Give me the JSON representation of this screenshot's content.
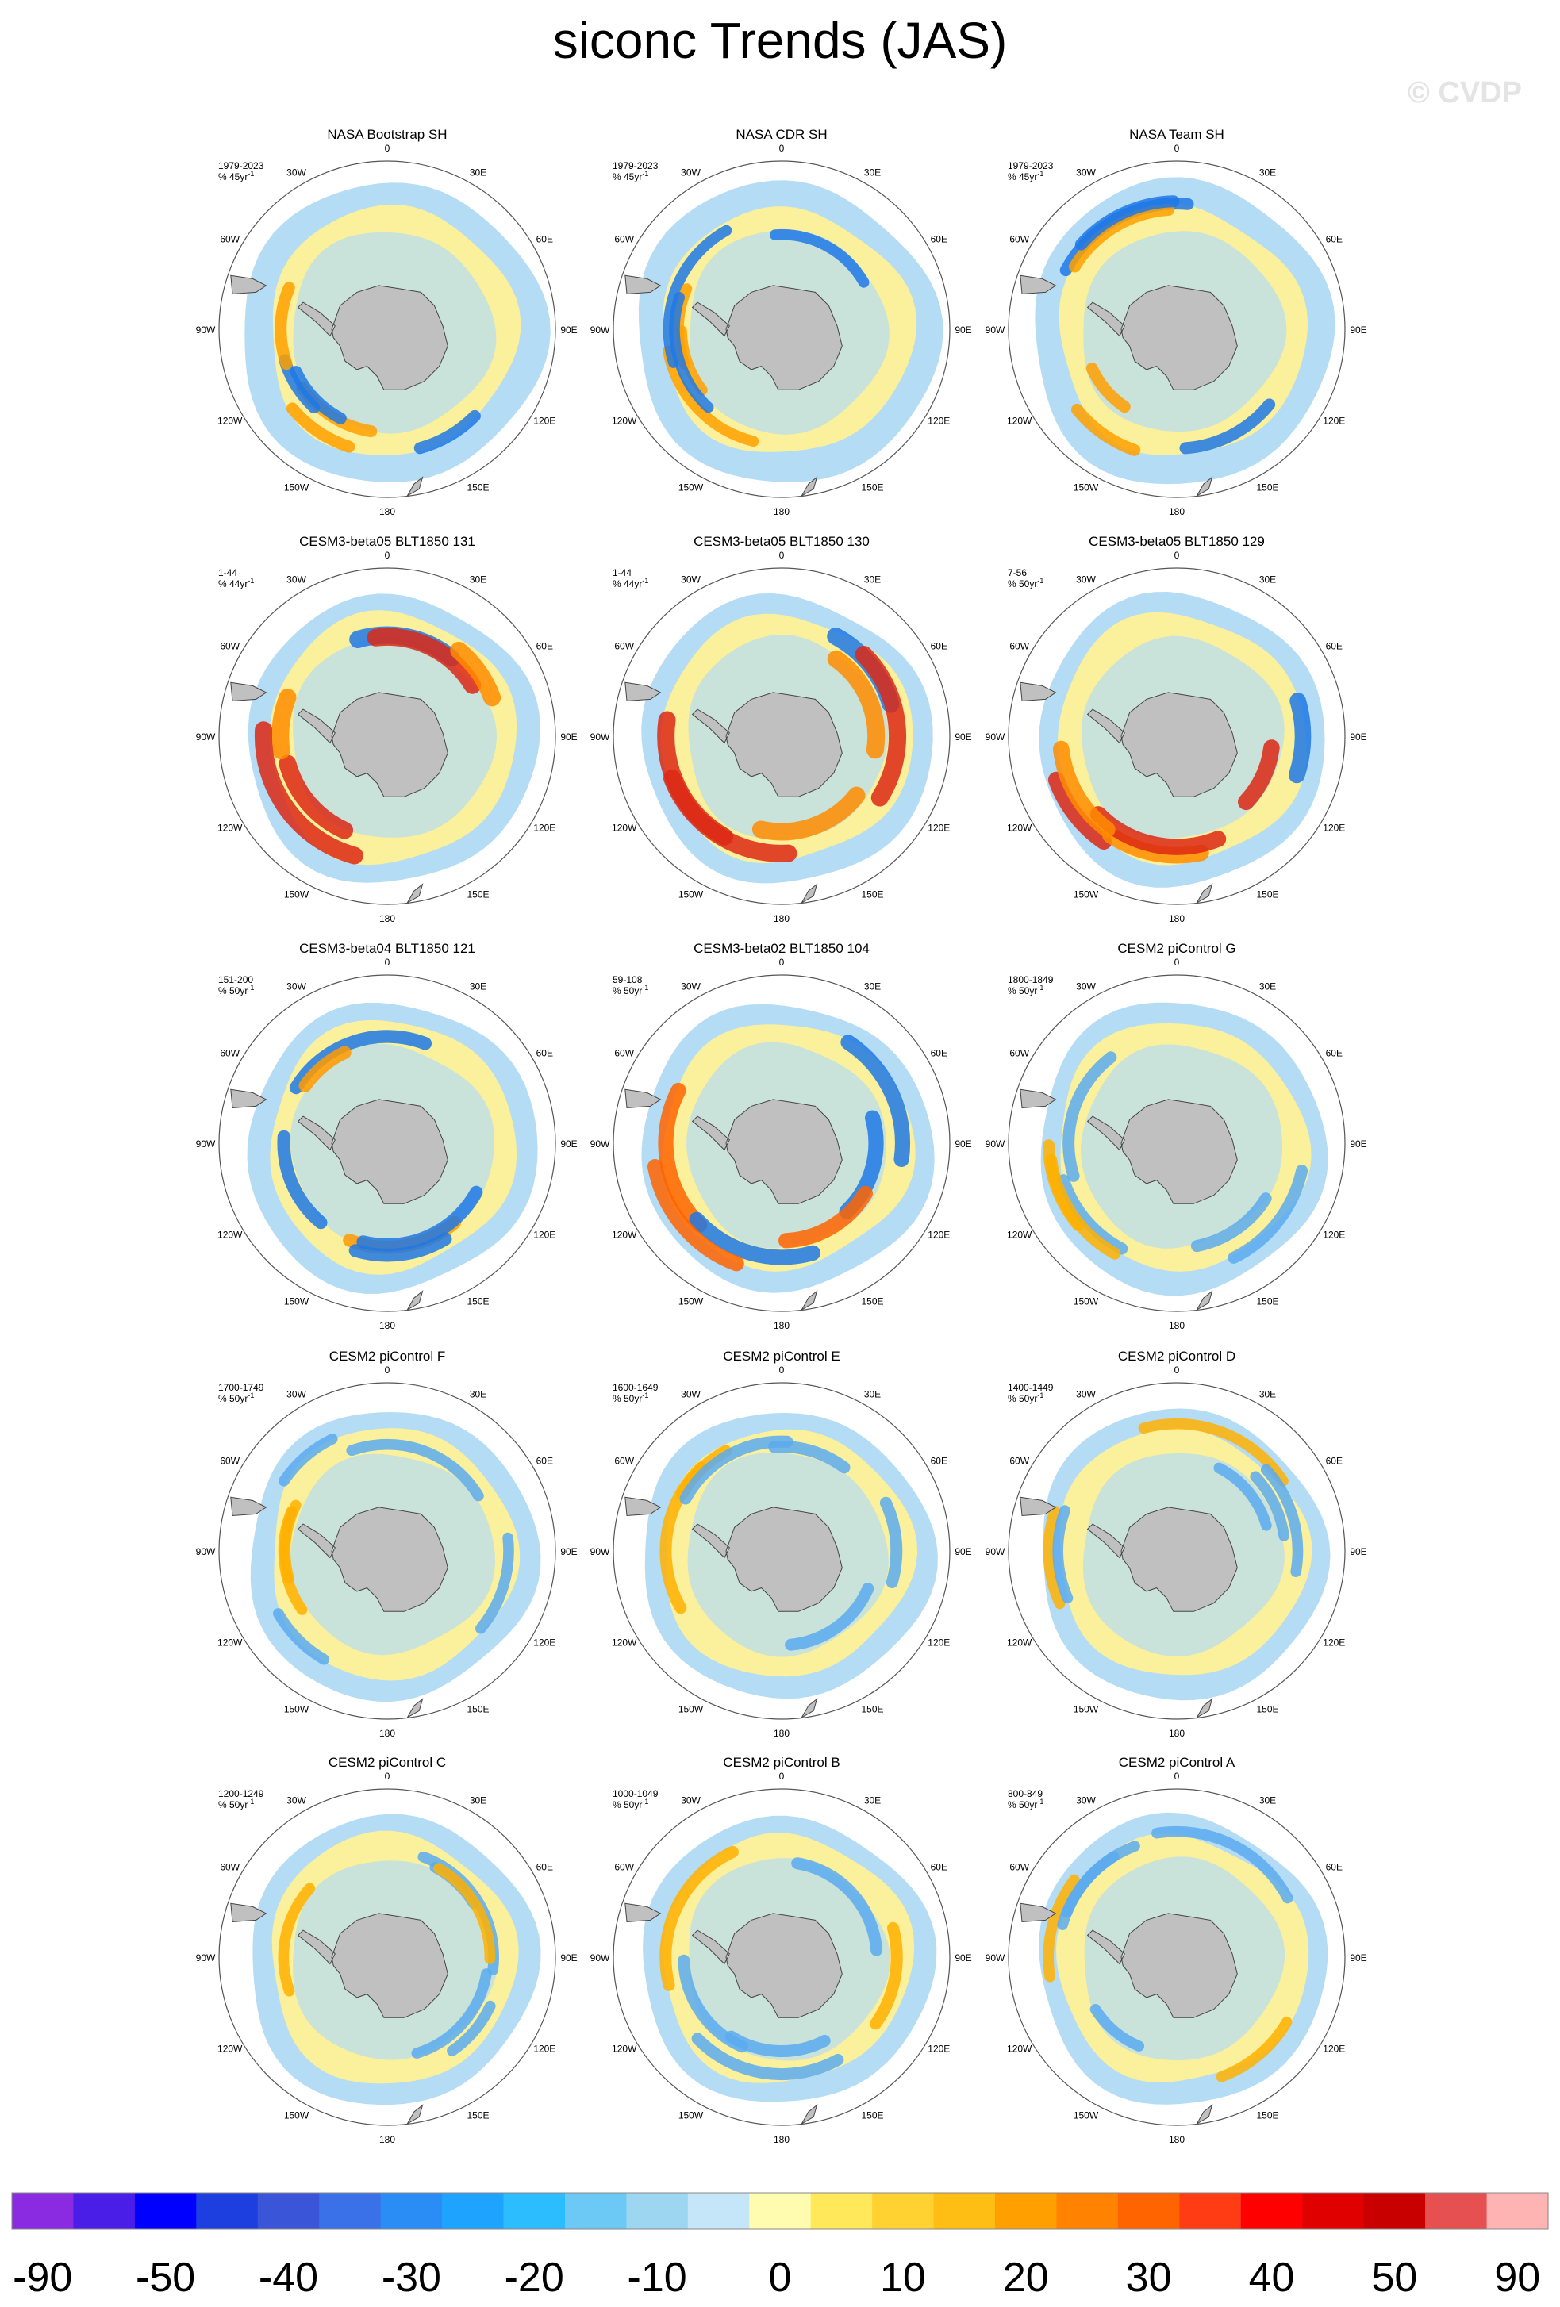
{
  "title": "siconc Trends (JAS)",
  "watermark": "© CVDP",
  "chart_data": {
    "type": "heatmap",
    "projection": "south-polar-stereographic",
    "variable": "siconc",
    "season": "JAS",
    "lon_labels": [
      "0",
      "30E",
      "60E",
      "90E",
      "120E",
      "150E",
      "180",
      "150W",
      "120W",
      "90W",
      "60W",
      "30W"
    ],
    "panels": [
      {
        "title": "NASA Bootstrap SH",
        "years": "1979-2023",
        "units": "% 45yr",
        "units_sup": "-1"
      },
      {
        "title": "NASA CDR SH",
        "years": "1979-2023",
        "units": "% 45yr",
        "units_sup": "-1"
      },
      {
        "title": "NASA Team SH",
        "years": "1979-2023",
        "units": "% 45yr",
        "units_sup": "-1"
      },
      {
        "title": "CESM3-beta05 BLT1850 131",
        "years": "1-44",
        "units": "% 44yr",
        "units_sup": "-1"
      },
      {
        "title": "CESM3-beta05 BLT1850 130",
        "years": "1-44",
        "units": "% 44yr",
        "units_sup": "-1"
      },
      {
        "title": "CESM3-beta05 BLT1850 129",
        "years": "7-56",
        "units": "% 50yr",
        "units_sup": "-1"
      },
      {
        "title": "CESM3-beta04 BLT1850 121",
        "years": "151-200",
        "units": "% 50yr",
        "units_sup": "-1"
      },
      {
        "title": "CESM3-beta02 BLT1850 104",
        "years": "59-108",
        "units": "% 50yr",
        "units_sup": "-1"
      },
      {
        "title": "CESM2 piControl G",
        "years": "1800-1849",
        "units": "% 50yr",
        "units_sup": "-1"
      },
      {
        "title": "CESM2 piControl F",
        "years": "1700-1749",
        "units": "% 50yr",
        "units_sup": "-1"
      },
      {
        "title": "CESM2 piControl E",
        "years": "1600-1649",
        "units": "% 50yr",
        "units_sup": "-1"
      },
      {
        "title": "CESM2 piControl D",
        "years": "1400-1449",
        "units": "% 50yr",
        "units_sup": "-1"
      },
      {
        "title": "CESM2 piControl C",
        "years": "1200-1249",
        "units": "% 50yr",
        "units_sup": "-1"
      },
      {
        "title": "CESM2 piControl B",
        "years": "1000-1049",
        "units": "% 50yr",
        "units_sup": "-1"
      },
      {
        "title": "CESM2 piControl A",
        "years": "800-849",
        "units": "% 50yr",
        "units_sup": "-1"
      }
    ],
    "colorbar": {
      "colors": [
        "#8a2be2",
        "#4b1ee8",
        "#0000ff",
        "#1d3fe0",
        "#3a55d8",
        "#3a70e8",
        "#2a8cf5",
        "#1ea4ff",
        "#2bbdff",
        "#6cc8f4",
        "#9cd6f0",
        "#c4e6f8",
        "#fffcb0",
        "#ffe85a",
        "#ffd232",
        "#ffbe14",
        "#ffa000",
        "#ff8200",
        "#ff6400",
        "#ff3c14",
        "#ff0000",
        "#e00000",
        "#c80000",
        "#e65050",
        "#ffb4b4"
      ],
      "tick_labels": [
        "-90",
        "-50",
        "-40",
        "-30",
        "-20",
        "-10",
        "0",
        "10",
        "20",
        "30",
        "40",
        "50",
        "90"
      ]
    },
    "field_colors": {
      "land": "#c0c0c0",
      "strong_negative": "#1e78e6",
      "weak_negative": "#b4dcf5",
      "weak_positive": "#fff096",
      "strong_positive": "#dc2814"
    }
  }
}
